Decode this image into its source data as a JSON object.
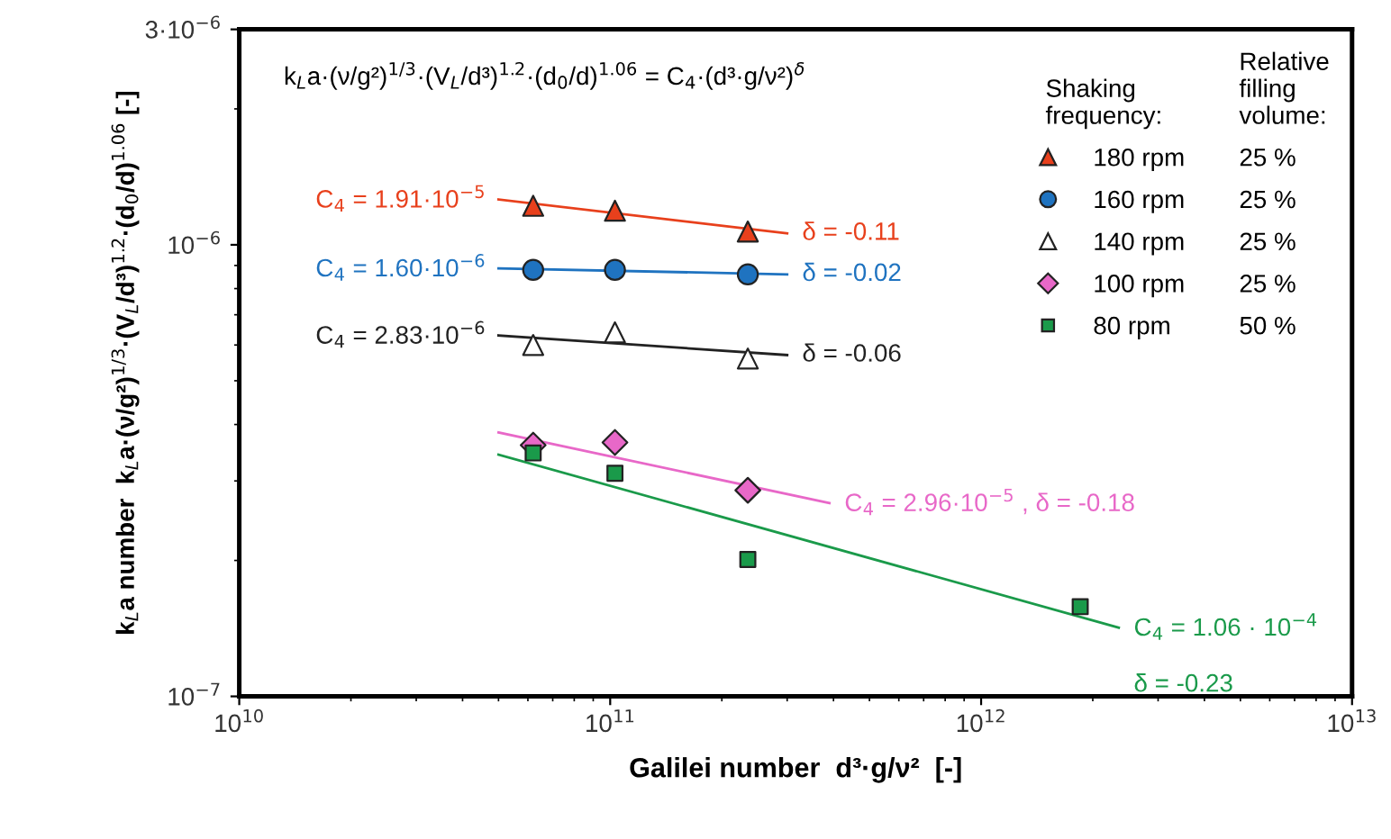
{
  "chart_data": {
    "type": "scatter",
    "xlabel": "Galilei number  d³·g/ν²  [-]",
    "ylabel": "k$_{L}$a number  k$_{L}$a·(ν/g²)$^{1/3}$·(V$_{L}$/d³)$^{1.2}$·(d$_{0}$/d)$^{1.06}$ [-]",
    "legend_title": "\nShaking\nfrequency:",
    "log": "xy",
    "grid": false,
    "legend": "top right",
    "xlim": [
      10000000000.0,
      10000000000000.0
    ],
    "ylim": [
      1e-07,
      3e-06
    ],
    "xticks": [
      {
        "value": 10000000000.0,
        "label": "10$^{10}$"
      },
      {
        "value": 100000000000.0,
        "label": "10$^{11}$"
      },
      {
        "value": 1000000000000.0,
        "label": "10$^{12}$"
      },
      {
        "value": 10000000000000.0,
        "label": "10$^{13}$"
      }
    ],
    "yticks": [
      {
        "value": 1e-07,
        "label": "10$^{−7}$"
      },
      {
        "value": 1e-06,
        "label": "10$^{−6}$"
      },
      {
        "value": 3e-06,
        "label": "3·10$^{−6}$"
      }
    ],
    "series": [
      {
        "name": "180 rpm",
        "marker": "triangle",
        "color": "#e8401c",
        "x": [
          62000000000.0,
          103000000000.0,
          235000000000.0
        ],
        "values": [
          1.22e-06,
          1.19e-06,
          1.07e-06
        ]
      },
      {
        "name": "160 rpm",
        "marker": "circle",
        "color": "#1f73c0",
        "x": [
          62000000000.0,
          103000000000.0,
          235000000000.0
        ],
        "values": [
          8.8e-07,
          8.8e-07,
          8.6e-07
        ]
      },
      {
        "name": "140 rpm",
        "marker": "triangle",
        "color": "#ffffff",
        "x": [
          62000000000.0,
          103000000000.0,
          235000000000.0
        ],
        "values": [
          6e-07,
          6.4e-07,
          5.6e-07
        ]
      },
      {
        "name": "100 rpm",
        "marker": "diamond",
        "color": "#e868c8",
        "x": [
          62000000000.0,
          103000000000.0,
          235000000000.0
        ],
        "values": [
          3.6e-07,
          3.65e-07,
          2.86e-07
        ]
      },
      {
        "name": "80 rpm",
        "marker": "square",
        "color": "#1a9a4a",
        "x": [
          62000000000.0,
          103000000000.0,
          235000000000.0,
          1850000000000.0
        ],
        "values": [
          3.46e-07,
          3.12e-07,
          2.01e-07,
          1.58e-07
        ]
      },
      {
        "type": "line",
        "color": "#e8401c",
        "x": [
          50000000000.0,
          300000000000.0
        ],
        "values": [
          1.26e-06,
          1.06e-06
        ]
      },
      {
        "type": "line",
        "color": "#1f73c0",
        "x": [
          50000000000.0,
          300000000000.0
        ],
        "values": [
          8.87e-07,
          8.6e-07
        ]
      },
      {
        "type": "line",
        "color": "#222222",
        "x": [
          50000000000.0,
          300000000000.0
        ],
        "values": [
          6.3e-07,
          5.7e-07
        ]
      },
      {
        "type": "line",
        "color": "#e868c8",
        "x": [
          50000000000.0,
          390000000000.0
        ],
        "values": [
          3.84e-07,
          2.68e-07
        ]
      },
      {
        "type": "line",
        "color": "#1a9a4a",
        "x": [
          50000000000.0,
          2350000000000.0
        ],
        "values": [
          3.43e-07,
          1.42e-07
        ]
      }
    ],
    "annotations": [
      "k$_{L}$a·(ν/g²)$^{1/3}$·(V$_{L}$/d³)$^{1.2}$·(d$_{0}$/d)$^{1.06}$ = C$_{4}$·(d³·g/ν²)$^{δ}$",
      "Relative\nfilling\nvolume:",
      "25 %",
      "25 %",
      "25 %",
      "25 %",
      "50 %",
      {
        "text": "C$_{4}$ = 1.91·10$^{−5}$",
        "x": 50000000000.0,
        "y": 1.26e-06
      },
      {
        "text": "δ = -0.11",
        "x": 300000000000.0,
        "y": 1.06e-06
      },
      {
        "text": "C$_{4}$ = 1.60·10$^{−6}$",
        "x": 50000000000.0,
        "y": 8.87e-07
      },
      {
        "text": "δ = -0.02",
        "x": 300000000000.0,
        "y": 8.6e-07
      },
      {
        "text": "C$_{4}$ = 2.83·10$^{−6}$",
        "x": 50000000000.0,
        "y": 6.3e-07
      },
      {
        "text": "δ = -0.06",
        "x": 300000000000.0,
        "y": 5.7e-07
      },
      {
        "text": "C$_{4}$ = 2.96·10$^{−5}$ , δ = -0.18",
        "x": 390000000000.0,
        "y": 2.68e-07
      },
      {
        "text": "C$_{4}$ = 1.06 · 10$^{−4}$",
        "x": 2350000000000.0,
        "y": 1.42e-07
      },
      {
        "text": "δ = -0.23",
        "x": 2350000000000.0,
        "y": 1.42e-07
      }
    ]
  }
}
